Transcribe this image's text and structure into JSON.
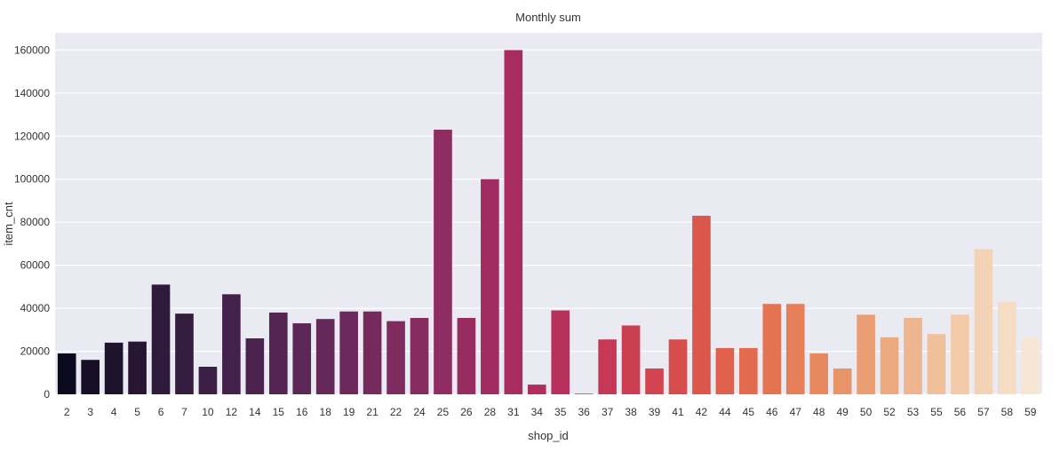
{
  "chart_data": {
    "type": "bar",
    "title": "Monthly sum",
    "xlabel": "shop_id",
    "ylabel": "item_cnt",
    "ylim": [
      0,
      168000
    ],
    "yticks": [
      0,
      20000,
      40000,
      60000,
      80000,
      100000,
      120000,
      140000,
      160000
    ],
    "grid": true,
    "background": "#eaeaf2",
    "categories": [
      "2",
      "3",
      "4",
      "5",
      "6",
      "7",
      "10",
      "12",
      "14",
      "15",
      "16",
      "18",
      "19",
      "21",
      "22",
      "24",
      "25",
      "26",
      "28",
      "31",
      "34",
      "35",
      "36",
      "37",
      "38",
      "39",
      "41",
      "42",
      "44",
      "45",
      "46",
      "47",
      "48",
      "49",
      "50",
      "52",
      "53",
      "55",
      "56",
      "57",
      "58",
      "59"
    ],
    "values": [
      19000,
      16000,
      24000,
      24500,
      51000,
      37500,
      12800,
      46500,
      26000,
      38000,
      33000,
      35000,
      38500,
      38500,
      34000,
      35500,
      123000,
      35500,
      100000,
      160000,
      4500,
      39000,
      300,
      25500,
      32000,
      12000,
      25500,
      83000,
      21500,
      21500,
      42000,
      42000,
      19000,
      12000,
      37000,
      26500,
      35500,
      28000,
      37000,
      67500,
      43000,
      26500
    ],
    "palette": [
      "#0c0a1e",
      "#170f25",
      "#1e122d",
      "#261634",
      "#2e1a3b",
      "#351d40",
      "#3d1f45",
      "#44214a",
      "#4c234e",
      "#542452",
      "#5c2656",
      "#642859",
      "#6d295c",
      "#752a5e",
      "#7e2b60",
      "#862c61",
      "#8f2c61",
      "#972c61",
      "#a02c61",
      "#a82c60",
      "#b02d5e",
      "#b8305c",
      "#bf3459",
      "#c63956",
      "#cc3f53",
      "#d24550",
      "#d74d4d",
      "#db564b",
      "#df604b",
      "#e26a4d",
      "#e47351",
      "#e67e58",
      "#e8885f",
      "#e99368",
      "#eb9d73",
      "#ecaa80",
      "#eeb58e",
      "#f0c09b",
      "#f2caa8",
      "#f3d3b6",
      "#f5dcc4",
      "#f6e6d4"
    ]
  }
}
